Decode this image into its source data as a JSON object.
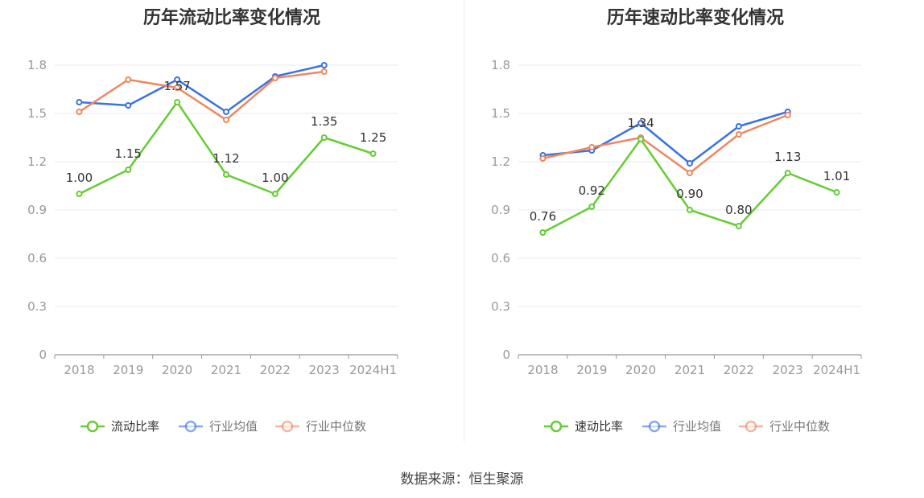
{
  "footer": {
    "source": "数据来源：恒生聚源"
  },
  "colors": {
    "company": "#66cc33",
    "avg": "#3a72e0",
    "median": "#f0875f",
    "grid": "#e6e9f2",
    "axis": "#999999",
    "label": "#999999"
  },
  "chart_data": [
    {
      "type": "line",
      "title": "历年流动比率变化情况",
      "categories": [
        "2018",
        "2019",
        "2020",
        "2021",
        "2022",
        "2023",
        "2024H1"
      ],
      "ylim": [
        0,
        1.8
      ],
      "yticks": [
        "0",
        "0.3",
        "0.6",
        "0.9",
        "1.2",
        "1.5",
        "1.8"
      ],
      "series": [
        {
          "name": "流动比率",
          "values": [
            1.0,
            1.15,
            1.57,
            1.12,
            1.0,
            1.35,
            1.25
          ],
          "labels": [
            "1.00",
            "1.15",
            "1.57",
            "1.12",
            "1.00",
            "1.35",
            "1.25"
          ]
        },
        {
          "name": "行业均值",
          "values": [
            1.57,
            1.55,
            1.71,
            1.51,
            1.73,
            1.8,
            null
          ]
        },
        {
          "name": "行业中位数",
          "values": [
            1.51,
            1.71,
            1.66,
            1.46,
            1.72,
            1.76,
            null
          ]
        }
      ]
    },
    {
      "type": "line",
      "title": "历年速动比率变化情况",
      "categories": [
        "2018",
        "2019",
        "2020",
        "2021",
        "2022",
        "2023",
        "2024H1"
      ],
      "ylim": [
        0,
        1.8
      ],
      "yticks": [
        "0",
        "0.3",
        "0.6",
        "0.9",
        "1.2",
        "1.5",
        "1.8"
      ],
      "series": [
        {
          "name": "速动比率",
          "values": [
            0.76,
            0.92,
            1.34,
            0.9,
            0.8,
            1.13,
            1.01
          ],
          "labels": [
            "0.76",
            "0.92",
            "1.34",
            "0.90",
            "0.80",
            "1.13",
            "1.01"
          ]
        },
        {
          "name": "行业均值",
          "values": [
            1.24,
            1.27,
            1.44,
            1.19,
            1.42,
            1.51,
            null
          ]
        },
        {
          "name": "行业中位数",
          "values": [
            1.22,
            1.29,
            1.35,
            1.13,
            1.37,
            1.49,
            null
          ]
        }
      ]
    }
  ]
}
